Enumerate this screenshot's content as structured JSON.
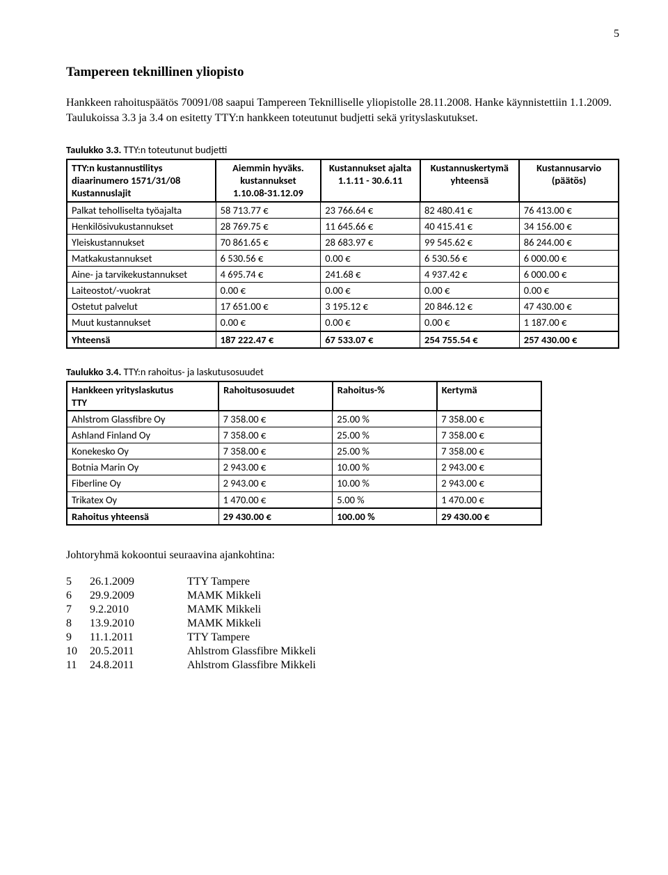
{
  "page_number": "5",
  "heading": "Tampereen teknillinen yliopisto",
  "intro_paragraph": "Hankkeen rahoituspäätös 70091/08 saapui Tampereen Teknilliselle yliopistolle 28.11.2008. Hanke käynnistettiin 1.1.2009. Taulukoissa 3.3 ja 3.4 on esitetty TTY:n hankkeen toteutunut budjetti sekä yrityslaskutukset.",
  "table33": {
    "caption_label": "Taulukko 3.3.",
    "caption_text": " TTY:n toteutunut budjetti",
    "head_col1_line1": "TTY:n kustannustilitys",
    "head_col1_line2": "diaarinumero 1571/31/08",
    "head_col1_line3": "Kustannuslajit",
    "head_col2_line1": "Aiemmin hyväks.",
    "head_col2_line2": "kustannukset",
    "head_col2_line3": "1.10.08-31.12.09",
    "head_col3_line1": "Kustannukset ajalta",
    "head_col3_line2": "1.1.11 - 30.6.11",
    "head_col4_line1": "Kustannuskertymä",
    "head_col4_line2": "yhteensä",
    "head_col5_line1": "Kustannusarvio",
    "head_col5_line2": "(päätös)",
    "rows": [
      {
        "label": "Palkat teholliselta työajalta",
        "c2": "58 713.77 €",
        "c3": "23 766.64 €",
        "c4": "82 480.41 €",
        "c5": "76 413.00 €"
      },
      {
        "label": "Henkilösivukustannukset",
        "c2": "28 769.75 €",
        "c3": "11 645.66 €",
        "c4": "40 415.41 €",
        "c5": "34 156.00 €"
      },
      {
        "label": "Yleiskustannukset",
        "c2": "70 861.65 €",
        "c3": "28 683.97 €",
        "c4": "99 545.62 €",
        "c5": "86 244.00 €"
      },
      {
        "label": "Matkakustannukset",
        "c2": "6 530.56 €",
        "c3": "0.00 €",
        "c4": "6 530.56 €",
        "c5": "6 000.00 €"
      },
      {
        "label": "Aine- ja tarvikekustannukset",
        "c2": "4 695.74 €",
        "c3": "241.68 €",
        "c4": "4 937.42 €",
        "c5": "6 000.00 €"
      },
      {
        "label": "Laiteostot/-vuokrat",
        "c2": "0.00 €",
        "c3": "0.00 €",
        "c4": "0.00 €",
        "c5": "0.00 €"
      },
      {
        "label": "Ostetut palvelut",
        "c2": "17 651.00 €",
        "c3": "3 195.12 €",
        "c4": "20 846.12 €",
        "c5": "47 430.00 €"
      },
      {
        "label": "Muut kustannukset",
        "c2": "0.00 €",
        "c3": "0.00 €",
        "c4": "0.00 €",
        "c5": "1 187.00 €"
      }
    ],
    "total": {
      "label": "Yhteensä",
      "c2": "187 222.47 €",
      "c3": "67 533.07 €",
      "c4": "254 755.54 €",
      "c5": "257 430.00 €"
    },
    "col_widths": [
      "27%",
      "19%",
      "18%",
      "18%",
      "18%"
    ]
  },
  "table34": {
    "caption_label": "Taulukko 3.4.",
    "caption_text": " TTY:n rahoitus- ja laskutusosuudet",
    "head_col1_line1": "Hankkeen yrityslaskutus",
    "head_col1_line2": "TTY",
    "head_col2": "Rahoitusosuudet",
    "head_col3": "Rahoitus-%",
    "head_col4": "Kertymä",
    "rows": [
      {
        "label": "Ahlstrom Glassfibre Oy",
        "c2": "7 358.00 €",
        "c3": "25.00 %",
        "c4": "7 358.00 €"
      },
      {
        "label": "Ashland Finland Oy",
        "c2": "7 358.00 €",
        "c3": "25.00 %",
        "c4": "7 358.00 €"
      },
      {
        "label": "Konekesko Oy",
        "c2": "7 358.00 €",
        "c3": "25.00 %",
        "c4": "7 358.00 €"
      },
      {
        "label": "Botnia Marin Oy",
        "c2": "2 943.00 €",
        "c3": "10.00 %",
        "c4": "2 943.00 €"
      },
      {
        "label": "Fiberline Oy",
        "c2": "2 943.00 €",
        "c3": "10.00 %",
        "c4": "2 943.00 €"
      },
      {
        "label": "Trikatex Oy",
        "c2": "1 470.00 €",
        "c3": "5.00 %",
        "c4": "1 470.00 €"
      }
    ],
    "total": {
      "label": "Rahoitus yhteensä",
      "c2": "29 430.00 €",
      "c3": "100.00 %",
      "c4": "29 430.00 €"
    },
    "col_widths": [
      "32%",
      "24%",
      "22%",
      "22%"
    ]
  },
  "meetings_intro": "Johtoryhmä kokoontui seuraavina ajankohtina:",
  "meetings": [
    {
      "idx": "5",
      "date": "26.1.2009",
      "place": "TTY Tampere"
    },
    {
      "idx": "6",
      "date": "29.9.2009",
      "place": "MAMK Mikkeli"
    },
    {
      "idx": "7",
      "date": "9.2.2010",
      "place": "MAMK Mikkeli"
    },
    {
      "idx": "8",
      "date": "13.9.2010",
      "place": "MAMK Mikkeli"
    },
    {
      "idx": "9",
      "date": "11.1.2011",
      "place": "TTY Tampere"
    },
    {
      "idx": "10",
      "date": "20.5.2011",
      "place": "Ahlstrom Glassfibre Mikkeli"
    },
    {
      "idx": "11",
      "date": "24.8.2011",
      "place": "Ahlstrom Glassfibre Mikkeli"
    }
  ]
}
